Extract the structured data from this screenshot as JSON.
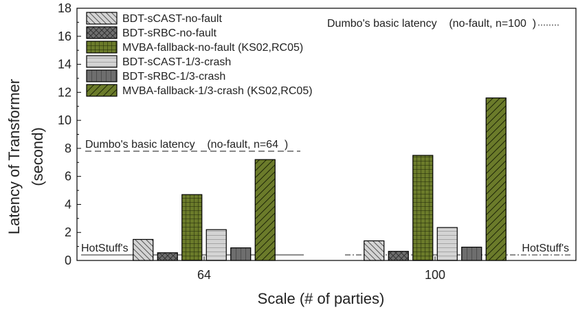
{
  "chart_data": {
    "type": "bar",
    "xlabel": "Scale (# of parties)",
    "ylabel_line1": "Latency of Transformer",
    "ylabel_line2": "(second)",
    "ylim": [
      0,
      18
    ],
    "yticks": [
      "0",
      "2",
      "4",
      "6",
      "8",
      "10",
      "12",
      "14",
      "16",
      "18"
    ],
    "categories": [
      "64",
      "100"
    ],
    "series": [
      {
        "name": "BDT-sCAST-no-fault",
        "values": [
          1.5,
          1.4
        ],
        "fill": "#d4d4d4",
        "pattern": "backslash"
      },
      {
        "name": "BDT-sRBC-no-fault",
        "values": [
          0.55,
          0.65
        ],
        "fill": "#6e6e6e",
        "pattern": "cross"
      },
      {
        "name": "MVBA-fallback-no-fault (KS02,RC05)",
        "values": [
          4.7,
          7.5
        ],
        "fill": "#6b7b2a",
        "pattern": "grid"
      },
      {
        "name": "BDT-sCAST-1/3-crash",
        "values": [
          2.2,
          2.35
        ],
        "fill": "#d4d4d4",
        "pattern": "hstripe"
      },
      {
        "name": "BDT-sRBC-1/3-crash",
        "values": [
          0.9,
          0.95
        ],
        "fill": "#6e6e6e",
        "pattern": "vstripe"
      },
      {
        "name": "MVBA-fallback-1/3-crash (KS02,RC05)",
        "values": [
          7.2,
          11.6
        ],
        "fill": "#6b7b2a",
        "pattern": "slash"
      }
    ],
    "annotations": {
      "dumbo64_text": "Dumbo's basic latency    (no-fault, n=64  )",
      "dumbo64_value": 7.8,
      "dumbo100_text": "Dumbo's basic latency    (no-fault, n=100  )",
      "dumbo100_value": 16.8,
      "hotstuff_text": "HotStuff's",
      "hotstuff_value": 0.4
    },
    "grid": false,
    "legend_position": "top-left"
  }
}
